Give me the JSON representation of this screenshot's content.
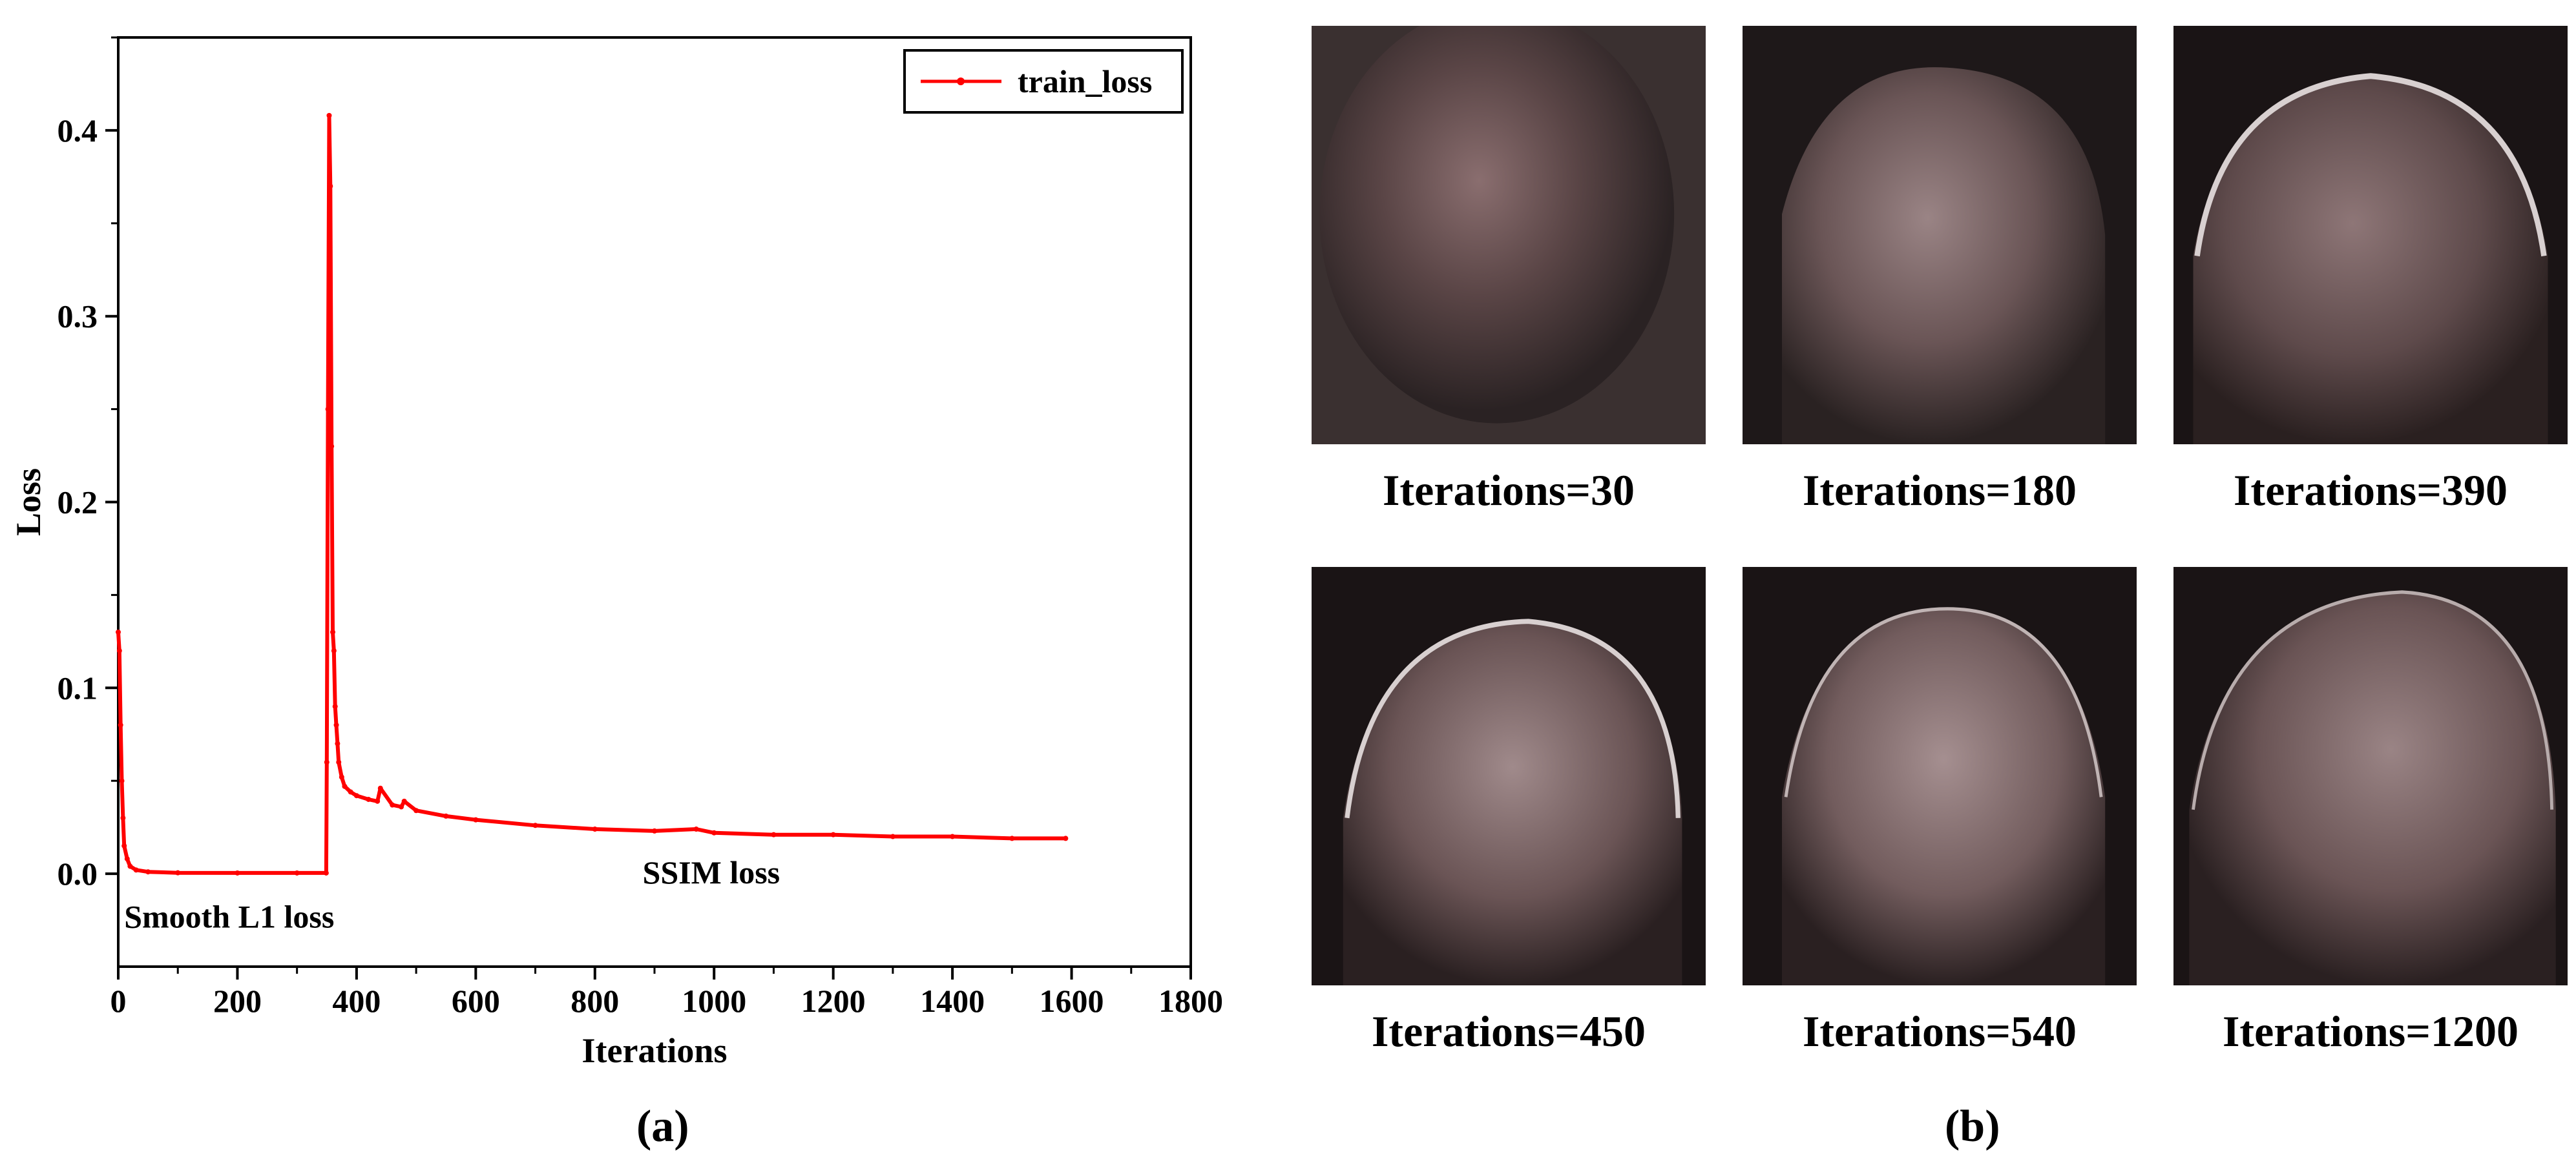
{
  "chart_data": {
    "type": "line",
    "xlabel": "Iterations",
    "ylabel": "Loss",
    "xlim": [
      0,
      1800
    ],
    "ylim": [
      -0.05,
      0.45
    ],
    "x_ticks": [
      0,
      200,
      400,
      600,
      800,
      1000,
      1200,
      1400,
      1600,
      1800
    ],
    "y_ticks": [
      0.0,
      0.1,
      0.2,
      0.3,
      0.4
    ],
    "grid": false,
    "legend": "top-right",
    "series": [
      {
        "name": "train_loss",
        "color": "#ff0000",
        "x": [
          0,
          2,
          4,
          6,
          8,
          10,
          15,
          20,
          30,
          50,
          100,
          200,
          300,
          349,
          350,
          352,
          354,
          356,
          358,
          360,
          362,
          364,
          366,
          368,
          370,
          375,
          380,
          390,
          400,
          420,
          435,
          440,
          460,
          475,
          480,
          500,
          550,
          600,
          700,
          800,
          900,
          970,
          1000,
          1100,
          1200,
          1300,
          1400,
          1500,
          1590
        ],
        "y": [
          0.13,
          0.12,
          0.08,
          0.05,
          0.03,
          0.015,
          0.008,
          0.004,
          0.002,
          0.001,
          0.0005,
          0.0004,
          0.0004,
          0.0004,
          0.06,
          0.25,
          0.408,
          0.37,
          0.23,
          0.13,
          0.12,
          0.09,
          0.08,
          0.07,
          0.06,
          0.052,
          0.047,
          0.044,
          0.042,
          0.04,
          0.039,
          0.046,
          0.037,
          0.036,
          0.039,
          0.034,
          0.031,
          0.029,
          0.026,
          0.024,
          0.023,
          0.024,
          0.022,
          0.021,
          0.021,
          0.02,
          0.02,
          0.019,
          0.019
        ]
      }
    ],
    "annotations": [
      {
        "text": "Smooth L1 loss",
        "x": 10,
        "y": -0.015
      },
      {
        "text": "SSIM loss",
        "x": 880,
        "y": 0.0
      }
    ]
  },
  "panel_labels": {
    "a": "(a)",
    "b": "(b)"
  },
  "thumbnails": [
    {
      "caption": "Iterations=30"
    },
    {
      "caption": "Iterations=180"
    },
    {
      "caption": "Iterations=390"
    },
    {
      "caption": "Iterations=450"
    },
    {
      "caption": "Iterations=540"
    },
    {
      "caption": "Iterations=1200"
    }
  ]
}
